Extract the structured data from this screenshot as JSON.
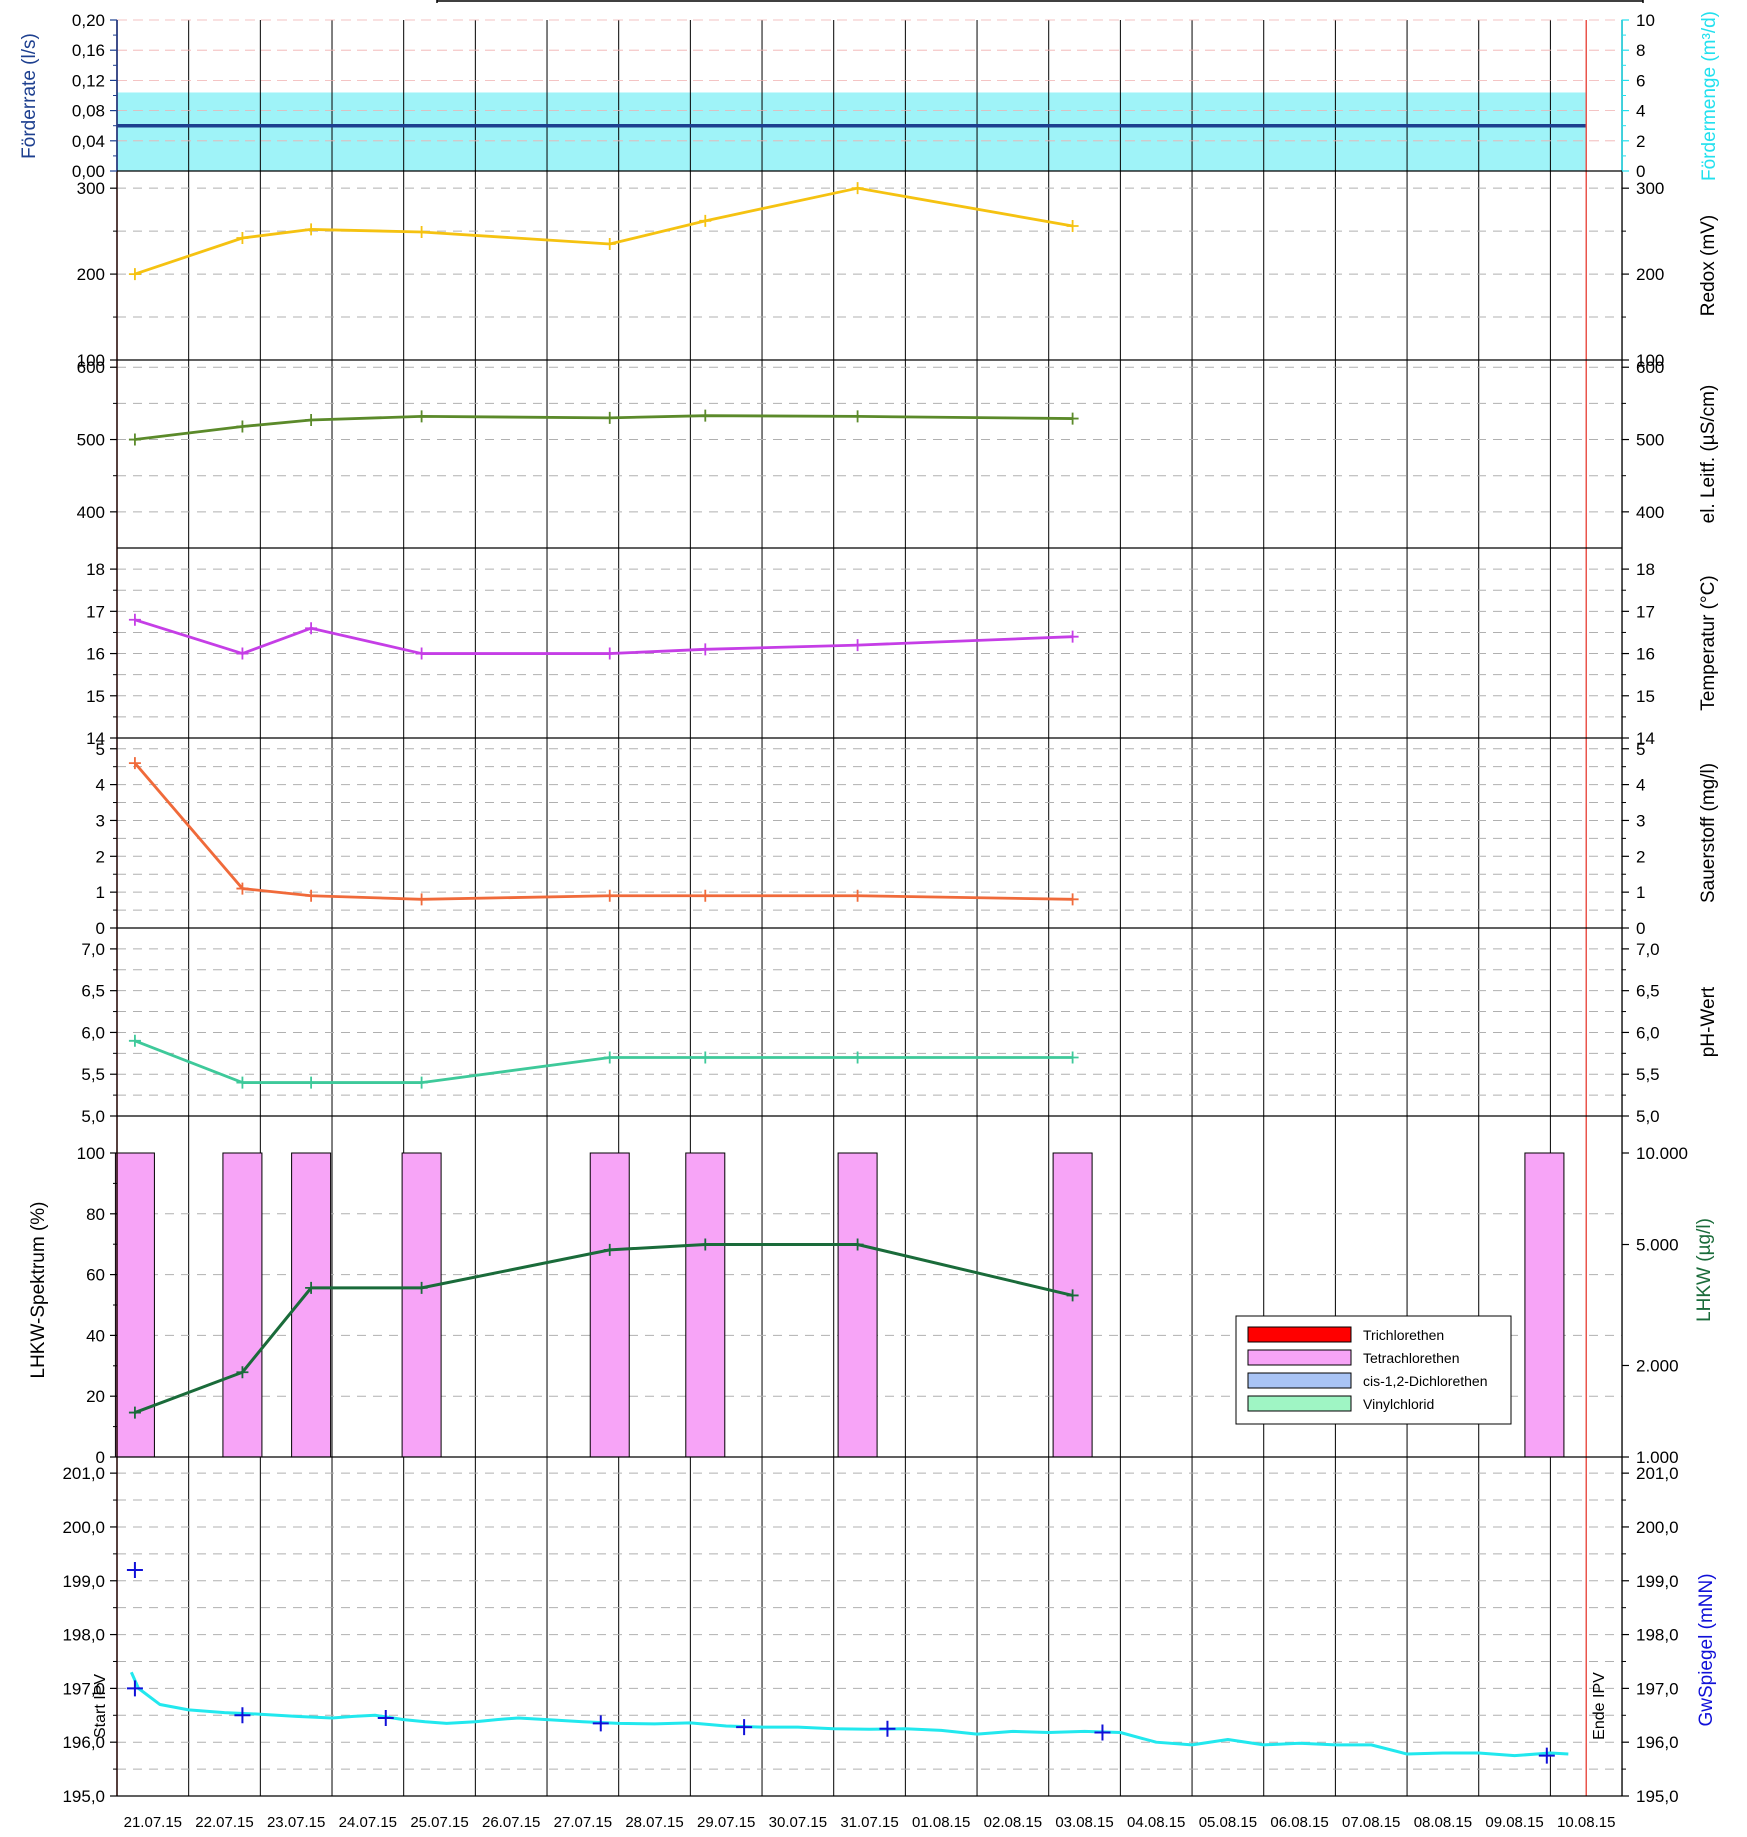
{
  "colors": {
    "flow": "#1d3f8f",
    "flow_band": "#9ff3f8",
    "redox": "#f5c211",
    "ec": "#5b8a2a",
    "temp": "#c53ee6",
    "oxygen": "#f06a3a",
    "ph": "#3ec99a",
    "lhkw_total": "#1a6b3a",
    "tetra": "#f7a4f7",
    "tri": "#ff0000",
    "cis": "#a9c4f5",
    "vinyl": "#9ff5c4",
    "gw_line": "#22e8ee",
    "gw_points": "#1010d8",
    "event": "#e8493f",
    "grid": "#000000",
    "dash": "#b0b0b0",
    "left_flow_label": "#1d3f8f",
    "right_flow_label": "#22e0ee",
    "left_lhkw_label": "#000000",
    "right_lhkw_label": "#1a6b3a",
    "gw_label": "#1010d8"
  },
  "chart_data": {
    "type": "multi-panel time series",
    "x_dates": [
      "21.07.15",
      "22.07.15",
      "23.07.15",
      "24.07.15",
      "25.07.15",
      "26.07.15",
      "27.07.15",
      "28.07.15",
      "29.07.15",
      "30.07.15",
      "31.07.15",
      "01.08.15",
      "02.08.15",
      "03.08.15",
      "04.08.15",
      "05.08.15",
      "06.08.15",
      "07.08.15",
      "08.08.15",
      "09.08.15",
      "10.08.15"
    ],
    "events": [
      {
        "label": "Start IPV",
        "date": "21.07.15",
        "time_h": 0
      },
      {
        "label": "Ende IPV",
        "date": "10.08.15",
        "time_h": 12
      }
    ],
    "sample_dates": [
      "21.07.15",
      "22.07.15",
      "23.07.15",
      "25.07.15",
      "27.07.15",
      "29.07.15",
      "31.07.15",
      "03.08.15",
      "09.08.15"
    ],
    "sample_times_h": [
      6,
      18,
      17,
      6,
      21,
      5,
      8,
      8,
      22
    ],
    "panels": [
      {
        "id": "flow",
        "left_label": "Förderrate (l/s)",
        "right_label": "Fördermenge (m³/d)",
        "left_ticks": [
          "0,00",
          "0,04",
          "0,08",
          "0,12",
          "0,16",
          "0,20"
        ],
        "right_ticks": [
          "0",
          "2",
          "4",
          "6",
          "8",
          "10"
        ],
        "ylim_left": [
          0,
          0.2
        ],
        "ylim_right": [
          0,
          10
        ],
        "rate_ls": 0.06,
        "volume_m3d": 5.2
      },
      {
        "id": "redox",
        "right_label": "Redox (mV)",
        "ticks": [
          "100",
          "200",
          "300"
        ],
        "ylim": [
          100,
          320
        ],
        "values": [
          200,
          242,
          252,
          249,
          235,
          262,
          300,
          256
        ]
      },
      {
        "id": "ec",
        "right_label": "el. Leitf. (µS/cm)",
        "ticks": [
          "400",
          "500",
          "600"
        ],
        "ylim": [
          350,
          610
        ],
        "values": [
          500,
          518,
          527,
          532,
          530,
          533,
          532,
          529
        ]
      },
      {
        "id": "temp",
        "right_label": "Temperatur (°C)",
        "ticks": [
          "14",
          "15",
          "16",
          "17",
          "18"
        ],
        "ylim": [
          14,
          18.5
        ],
        "values": [
          16.8,
          16.0,
          16.6,
          16.0,
          16.0,
          16.1,
          16.2,
          16.4
        ]
      },
      {
        "id": "oxygen",
        "right_label": "Sauerstoff (mg/l)",
        "ticks": [
          "0",
          "1",
          "2",
          "3",
          "4",
          "5"
        ],
        "ylim": [
          0,
          5.3
        ],
        "values": [
          4.6,
          1.1,
          0.9,
          0.8,
          0.9,
          0.9,
          0.9,
          0.8
        ]
      },
      {
        "id": "ph",
        "right_label": "pH-Wert",
        "ticks": [
          "5,0",
          "5,5",
          "6,0",
          "6,5",
          "7,0"
        ],
        "ylim": [
          5.0,
          7.25
        ],
        "values": [
          5.9,
          5.4,
          5.4,
          5.4,
          5.7,
          5.7,
          5.7,
          5.7
        ]
      },
      {
        "id": "lhkw",
        "left_label": "LHKW-Spektrum (%)",
        "right_label": "LHKW (µg/l)",
        "left_ticks": [
          "0",
          "20",
          "40",
          "60",
          "80",
          "100"
        ],
        "right_ticks": [
          "1.000",
          "2.000",
          "5.000",
          "10.000"
        ],
        "ylim_left": [
          0,
          100
        ],
        "ylim_right_log": [
          1000,
          10000
        ],
        "total_values": [
          1400,
          1900,
          3600,
          3600,
          4800,
          5000,
          5000,
          3400
        ],
        "spectrum_pct": {
          "Trichlorethen": 0,
          "Tetrachlorethen": 100,
          "cis-1,2-Dichlorethen": 0,
          "Vinylchlorid": 0
        },
        "legend": [
          "Trichlorethen",
          "Tetrachlorethen",
          "cis-1,2-Dichlorethen",
          "Vinylchlorid"
        ]
      },
      {
        "id": "gw",
        "right_label": "GwSpiegel (mNN)",
        "ticks": [
          "195,0",
          "196,0",
          "197,0",
          "198,0",
          "199,0",
          "200,0",
          "201,0"
        ],
        "ylim": [
          195.0,
          201.3
        ],
        "measured_points": [
          [
            0.25,
            199.2
          ],
          [
            0.25,
            197.0
          ],
          [
            1.75,
            196.5
          ],
          [
            3.75,
            196.45
          ],
          [
            6.75,
            196.35
          ],
          [
            8.75,
            196.28
          ],
          [
            10.75,
            196.25
          ],
          [
            13.75,
            196.18
          ],
          [
            19.95,
            195.75
          ]
        ],
        "logger_series": [
          [
            0.2,
            197.3
          ],
          [
            0.3,
            197.0
          ],
          [
            0.6,
            196.7
          ],
          [
            1.0,
            196.6
          ],
          [
            1.5,
            196.55
          ],
          [
            2.0,
            196.52
          ],
          [
            2.5,
            196.48
          ],
          [
            3.0,
            196.45
          ],
          [
            3.3,
            196.48
          ],
          [
            3.6,
            196.5
          ],
          [
            4.0,
            196.42
          ],
          [
            4.3,
            196.38
          ],
          [
            4.6,
            196.35
          ],
          [
            5.0,
            196.38
          ],
          [
            5.3,
            196.42
          ],
          [
            5.6,
            196.45
          ],
          [
            6.0,
            196.42
          ],
          [
            6.5,
            196.38
          ],
          [
            7.0,
            196.35
          ],
          [
            7.5,
            196.34
          ],
          [
            8.0,
            196.36
          ],
          [
            8.5,
            196.3
          ],
          [
            9.0,
            196.28
          ],
          [
            9.5,
            196.28
          ],
          [
            10.0,
            196.25
          ],
          [
            10.5,
            196.24
          ],
          [
            11.0,
            196.25
          ],
          [
            11.5,
            196.22
          ],
          [
            12.0,
            196.15
          ],
          [
            12.5,
            196.2
          ],
          [
            13.0,
            196.18
          ],
          [
            13.5,
            196.2
          ],
          [
            14.0,
            196.18
          ],
          [
            14.5,
            196.0
          ],
          [
            15.0,
            195.95
          ],
          [
            15.5,
            196.05
          ],
          [
            16.0,
            195.95
          ],
          [
            16.5,
            195.98
          ],
          [
            17.0,
            195.95
          ],
          [
            17.5,
            195.95
          ],
          [
            18.0,
            195.78
          ],
          [
            18.5,
            195.8
          ],
          [
            19.0,
            195.8
          ],
          [
            19.5,
            195.75
          ],
          [
            20.0,
            195.8
          ],
          [
            20.25,
            195.78
          ]
        ]
      }
    ]
  }
}
